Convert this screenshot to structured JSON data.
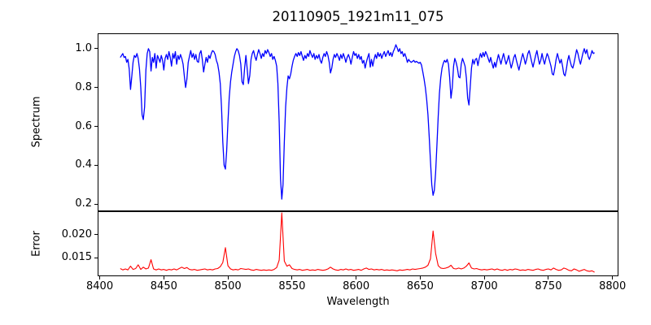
{
  "figure": {
    "background": "#ffffff"
  },
  "chart_data": {
    "type": "line",
    "title": "20110905_1921m11_075",
    "xlabel": "Wavelength",
    "xlim": [
      8399,
      8804
    ],
    "x_ticks": [
      8400,
      8450,
      8500,
      8550,
      8600,
      8650,
      8700,
      8750,
      8800
    ],
    "x_tick_labels": [
      "8400",
      "8450",
      "8500",
      "8550",
      "8600",
      "8650",
      "8700",
      "8750",
      "8800"
    ],
    "grid": false,
    "legend": "none",
    "panels": [
      {
        "name": "spectrum",
        "ylabel": "Spectrum",
        "line_color": "#0000ff",
        "ylim": [
          0.167,
          1.075
        ],
        "y_tick_values": [
          1.0,
          0.8,
          0.6,
          0.4,
          0.2
        ],
        "y_tick_labels": [
          "1.0",
          "0.8",
          "0.6",
          "0.4",
          "0.2"
        ],
        "x_start": 8416,
        "x_step": 1,
        "values": [
          0.955,
          0.965,
          0.975,
          0.955,
          0.96,
          0.93,
          0.945,
          0.895,
          0.79,
          0.86,
          0.93,
          0.965,
          0.955,
          0.975,
          0.95,
          0.895,
          0.8,
          0.66,
          0.635,
          0.7,
          0.89,
          0.975,
          1.0,
          0.985,
          0.885,
          0.955,
          0.93,
          0.975,
          0.9,
          0.965,
          0.95,
          0.93,
          0.965,
          0.94,
          0.89,
          0.95,
          0.97,
          0.945,
          0.985,
          0.955,
          0.91,
          0.975,
          0.95,
          0.985,
          0.92,
          0.965,
          0.945,
          0.97,
          0.95,
          0.92,
          0.86,
          0.8,
          0.845,
          0.93,
          0.96,
          0.99,
          0.955,
          0.975,
          0.945,
          0.97,
          0.935,
          0.93,
          0.975,
          0.99,
          0.945,
          0.88,
          0.92,
          0.955,
          0.93,
          0.965,
          0.95,
          0.975,
          0.99,
          0.985,
          0.97,
          0.94,
          0.92,
          0.88,
          0.82,
          0.7,
          0.52,
          0.4,
          0.38,
          0.47,
          0.62,
          0.75,
          0.83,
          0.88,
          0.92,
          0.96,
          0.985,
          1.0,
          0.99,
          0.965,
          0.92,
          0.83,
          0.815,
          0.9,
          0.965,
          0.9,
          0.82,
          0.86,
          0.945,
          0.975,
          0.99,
          0.96,
          0.94,
          0.97,
          0.995,
          0.975,
          0.95,
          0.975,
          0.96,
          0.99,
          0.975,
          0.995,
          0.98,
          0.96,
          0.975,
          0.945,
          0.96,
          0.94,
          0.91,
          0.82,
          0.62,
          0.33,
          0.225,
          0.3,
          0.52,
          0.7,
          0.8,
          0.86,
          0.845,
          0.87,
          0.91,
          0.94,
          0.96,
          0.975,
          0.96,
          0.98,
          0.965,
          0.985,
          0.96,
          0.94,
          0.965,
          0.95,
          0.975,
          0.96,
          0.99,
          0.97,
          0.955,
          0.975,
          0.945,
          0.965,
          0.95,
          0.97,
          0.94,
          0.925,
          0.955,
          0.975,
          0.96,
          0.985,
          0.965,
          0.93,
          0.875,
          0.9,
          0.945,
          0.97,
          0.955,
          0.975,
          0.96,
          0.94,
          0.97,
          0.95,
          0.975,
          0.955,
          0.93,
          0.955,
          0.97,
          0.95,
          0.92,
          0.955,
          0.985,
          0.965,
          0.975,
          0.95,
          0.97,
          0.945,
          0.96,
          0.925,
          0.94,
          0.9,
          0.93,
          0.955,
          0.975,
          0.905,
          0.945,
          0.91,
          0.945,
          0.97,
          0.95,
          0.98,
          0.96,
          0.975,
          0.95,
          0.97,
          0.985,
          0.96,
          0.975,
          0.99,
          0.965,
          0.98,
          0.96,
          0.985,
          1.0,
          1.02,
          1.005,
          0.985,
          1.0,
          0.975,
          0.985,
          0.96,
          0.975,
          0.955,
          0.93,
          0.945,
          0.935,
          0.93,
          0.935,
          0.94,
          0.93,
          0.935,
          0.93,
          0.925,
          0.93,
          0.915,
          0.88,
          0.845,
          0.8,
          0.74,
          0.66,
          0.55,
          0.42,
          0.3,
          0.245,
          0.27,
          0.36,
          0.5,
          0.65,
          0.77,
          0.85,
          0.9,
          0.925,
          0.94,
          0.93,
          0.945,
          0.92,
          0.85,
          0.745,
          0.8,
          0.91,
          0.95,
          0.93,
          0.9,
          0.855,
          0.85,
          0.92,
          0.95,
          0.93,
          0.91,
          0.85,
          0.745,
          0.71,
          0.8,
          0.9,
          0.945,
          0.92,
          0.945,
          0.95,
          0.913,
          0.95,
          0.975,
          0.955,
          0.98,
          0.96,
          0.985,
          0.97,
          0.95,
          0.93,
          0.955,
          0.925,
          0.9,
          0.93,
          0.905,
          0.94,
          0.97,
          0.945,
          0.92,
          0.95,
          0.975,
          0.945,
          0.92,
          0.94,
          0.965,
          0.93,
          0.9,
          0.925,
          0.955,
          0.97,
          0.94,
          0.915,
          0.89,
          0.92,
          0.95,
          0.975,
          0.95,
          0.92,
          0.945,
          0.975,
          0.99,
          0.96,
          0.93,
          0.905,
          0.935,
          0.965,
          0.99,
          0.955,
          0.92,
          0.94,
          0.975,
          0.945,
          0.92,
          0.95,
          0.975,
          0.96,
          0.935,
          0.91,
          0.87,
          0.865,
          0.9,
          0.945,
          0.975,
          0.95,
          0.925,
          0.945,
          0.91,
          0.87,
          0.86,
          0.895,
          0.94,
          0.965,
          0.935,
          0.91,
          0.9,
          0.925,
          0.96,
          0.995,
          0.975,
          0.945,
          0.92,
          0.95,
          0.98,
          1.0,
          0.975,
          0.995,
          0.96,
          0.945,
          0.965,
          0.99,
          0.975,
          0.98
        ]
      },
      {
        "name": "error",
        "ylabel": "Error",
        "line_color": "#ff0000",
        "ylim": [
          0.0112,
          0.0249
        ],
        "y_tick_values": [
          0.02,
          0.015
        ],
        "y_tick_labels": [
          "0.020",
          "0.015"
        ],
        "x_start": 8416,
        "x_step": 2,
        "values": [
          0.0127,
          0.0124,
          0.0126,
          0.0124,
          0.0132,
          0.0125,
          0.0127,
          0.0135,
          0.0125,
          0.013,
          0.0126,
          0.0128,
          0.0146,
          0.0126,
          0.0124,
          0.0126,
          0.0124,
          0.0125,
          0.0123,
          0.0125,
          0.0124,
          0.0126,
          0.0124,
          0.0127,
          0.013,
          0.0127,
          0.0129,
          0.0125,
          0.0124,
          0.0125,
          0.0123,
          0.0124,
          0.0125,
          0.0126,
          0.0124,
          0.0125,
          0.0124,
          0.0126,
          0.0127,
          0.0131,
          0.014,
          0.0172,
          0.0133,
          0.0126,
          0.0124,
          0.0125,
          0.0124,
          0.0127,
          0.0126,
          0.0125,
          0.0126,
          0.0124,
          0.0123,
          0.0125,
          0.0124,
          0.0123,
          0.0124,
          0.0123,
          0.0124,
          0.0123,
          0.0125,
          0.0129,
          0.0145,
          0.0247,
          0.0143,
          0.0132,
          0.0135,
          0.0127,
          0.0125,
          0.0124,
          0.0125,
          0.0123,
          0.0124,
          0.0125,
          0.0123,
          0.0124,
          0.0123,
          0.0125,
          0.0124,
          0.0123,
          0.0124,
          0.0126,
          0.013,
          0.0126,
          0.0124,
          0.0123,
          0.0125,
          0.0124,
          0.0126,
          0.0124,
          0.0125,
          0.0123,
          0.0124,
          0.0125,
          0.0123,
          0.0126,
          0.0128,
          0.0125,
          0.0126,
          0.0124,
          0.0125,
          0.0124,
          0.0125,
          0.0123,
          0.0124,
          0.0123,
          0.0124,
          0.0123,
          0.0122,
          0.0124,
          0.0123,
          0.0124,
          0.0125,
          0.0124,
          0.0126,
          0.0125,
          0.0126,
          0.0127,
          0.0128,
          0.013,
          0.0134,
          0.0148,
          0.0208,
          0.016,
          0.0133,
          0.0128,
          0.0127,
          0.0128,
          0.013,
          0.0134,
          0.0127,
          0.0126,
          0.0128,
          0.0126,
          0.0128,
          0.0132,
          0.0139,
          0.0128,
          0.0126,
          0.0127,
          0.0125,
          0.0124,
          0.0125,
          0.0124,
          0.0125,
          0.0126,
          0.0124,
          0.0126,
          0.0124,
          0.0123,
          0.0125,
          0.0123,
          0.0125,
          0.0124,
          0.0126,
          0.0125,
          0.0123,
          0.0124,
          0.0123,
          0.0125,
          0.0124,
          0.0123,
          0.0125,
          0.0126,
          0.0124,
          0.0123,
          0.0125,
          0.0126,
          0.0124,
          0.0128,
          0.0125,
          0.0123,
          0.0124,
          0.0128,
          0.0126,
          0.0123,
          0.0122,
          0.0126,
          0.0124,
          0.0121,
          0.0123,
          0.0125,
          0.0122,
          0.0121,
          0.0122,
          0.0119
        ]
      }
    ]
  }
}
